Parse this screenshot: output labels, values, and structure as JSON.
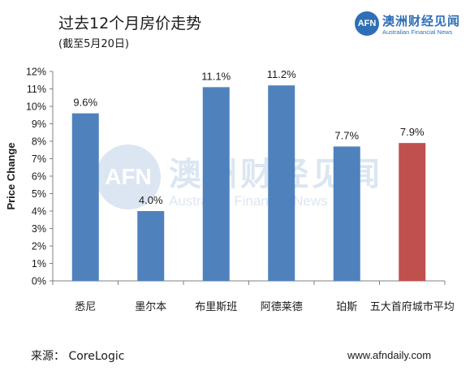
{
  "header": {
    "title": "过去12个月房价走势",
    "subtitle": "(截至5月20日)"
  },
  "logo": {
    "mark": "AFN",
    "name_cn": "澳洲财经见闻",
    "name_en": "Australian Financial News"
  },
  "watermark": {
    "mark": "AFN",
    "name_cn": "澳洲财经见闻",
    "name_en": "Australian Financial News"
  },
  "footer": {
    "source": "来源： CoreLogic",
    "site": "www.afndaily.com"
  },
  "colors": {
    "bar_default": "#4f81bd",
    "bar_highlight": "#c0504d",
    "brand": "#2f6fb6"
  },
  "chart_data": {
    "type": "bar",
    "ylabel": "Price Change",
    "ylim": [
      0,
      12
    ],
    "yticks": [
      "0%",
      "1%",
      "2%",
      "3%",
      "4%",
      "5%",
      "6%",
      "7%",
      "8%",
      "9%",
      "10%",
      "11%",
      "12%"
    ],
    "categories": [
      "悉尼",
      "墨尔本",
      "布里斯班",
      "阿德莱德",
      "珀斯",
      "五大首府城市平均"
    ],
    "values": [
      9.6,
      4.0,
      11.1,
      11.2,
      7.7,
      7.9
    ],
    "data_labels": [
      "9.6%",
      "4.0%",
      "11.1%",
      "11.2%",
      "7.7%",
      "7.9%"
    ],
    "highlight_index": 5,
    "grid": false,
    "legend": "none"
  }
}
